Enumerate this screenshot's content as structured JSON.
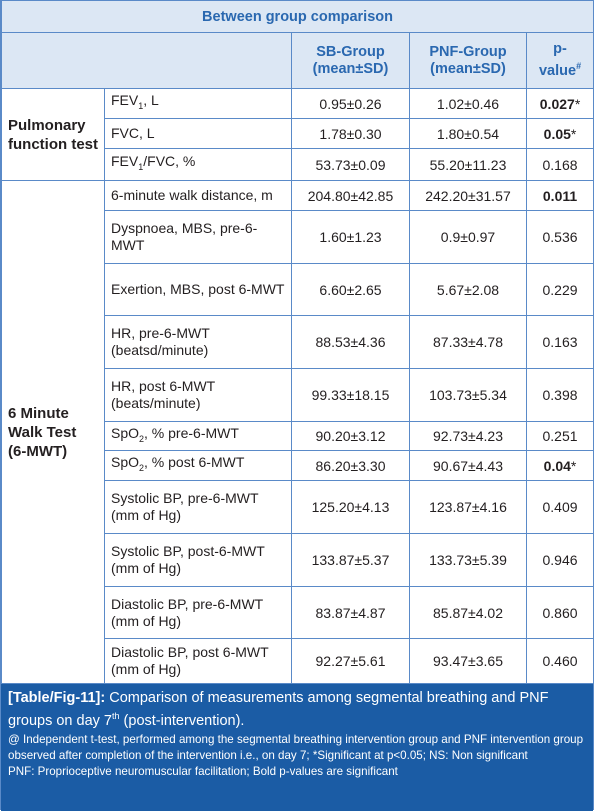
{
  "table": {
    "title": "Between group comparison",
    "columns": [
      "SB-Group (mean±SD)",
      "PNF-Group (mean±SD)",
      "p-value"
    ],
    "p_value_mark": "#",
    "groups": [
      {
        "label": "Pulmonary function test",
        "rows": [
          {
            "label": "FEV",
            "label_sub": "1",
            "label_rest": ", L",
            "sb": "0.95±0.26",
            "pnf": "1.02±0.46",
            "p": "0.027",
            "bold": true,
            "mark": "*"
          },
          {
            "label": "FVC, L",
            "sb": "1.78±0.30",
            "pnf": "1.80±0.54",
            "p": "0.05",
            "bold": true,
            "mark": "*"
          },
          {
            "label": "FEV",
            "label_sub": "1",
            "label_rest": "/FVC, %",
            "sb": "53.73±0.09",
            "pnf": "55.20±11.23",
            "p": "0.168",
            "bold": false
          }
        ]
      },
      {
        "label": "6 Minute Walk Test (6-MWT)",
        "rows": [
          {
            "label": "6-minute walk distance, m",
            "sb": "204.80±42.85",
            "pnf": "242.20±31.57",
            "p": "0.011",
            "bold": true
          },
          {
            "label": "Dyspnoea, MBS, pre-6-MWT",
            "sb": "1.60±1.23",
            "pnf": "0.9±0.97",
            "p": "0.536",
            "bold": false
          },
          {
            "label": "Exertion, MBS, post 6-MWT",
            "sb": "6.60±2.65",
            "pnf": "5.67±2.08",
            "p": "0.229",
            "bold": false
          },
          {
            "label": "HR, pre-6-MWT (beatsd/minute)",
            "sb": "88.53±4.36",
            "pnf": "87.33±4.78",
            "p": "0.163",
            "bold": false
          },
          {
            "label": "HR, post 6-MWT (beats/minute)",
            "sb": "99.33±18.15",
            "pnf": "103.73±5.34",
            "p": "0.398",
            "bold": false
          },
          {
            "label": "SpO",
            "label_sub": "2",
            "label_rest": ", % pre-6-MWT",
            "sb": "90.20±3.12",
            "pnf": "92.73±4.23",
            "p": "0.251",
            "bold": false
          },
          {
            "label": "SpO",
            "label_sub": "2",
            "label_rest": ", % post 6-MWT",
            "sb": "86.20±3.30",
            "pnf": "90.67±4.43",
            "p": "0.04",
            "bold": true,
            "mark": "*"
          },
          {
            "label": "Systolic BP, pre-6-MWT (mm of Hg)",
            "sb": "125.20±4.13",
            "pnf": "123.87±4.16",
            "p": "0.409",
            "bold": false
          },
          {
            "label": "Systolic BP, post-6-MWT (mm of Hg)",
            "sb": "133.87±5.37",
            "pnf": "133.73±5.39",
            "p": "0.946",
            "bold": false
          },
          {
            "label": "Diastolic BP, pre-6-MWT (mm of Hg)",
            "sb": "83.87±4.87",
            "pnf": "85.87±4.02",
            "p": "0.860",
            "bold": false
          },
          {
            "label": "Diastolic BP, post 6-MWT (mm of Hg)",
            "sb": "92.27±5.61",
            "pnf": "93.47±3.65",
            "p": "0.460",
            "bold": false
          }
        ]
      }
    ]
  },
  "caption": {
    "tag": "[Table/Fig-11]:",
    "text": "Comparison of measurements among segmental breathing and PNF groups on day 7",
    "sup": "th",
    "rest": "(post-intervention).",
    "notes": [
      "@ Independent t-test, performed among the segmental breathing intervention group and PNF intervention group observed after completion of the intervention i.e., on day 7; *Significant at p<0.05; NS: Non significant",
      "PNF: Proprioceptive neuromuscular facilitation; Bold p-values are significant"
    ]
  }
}
